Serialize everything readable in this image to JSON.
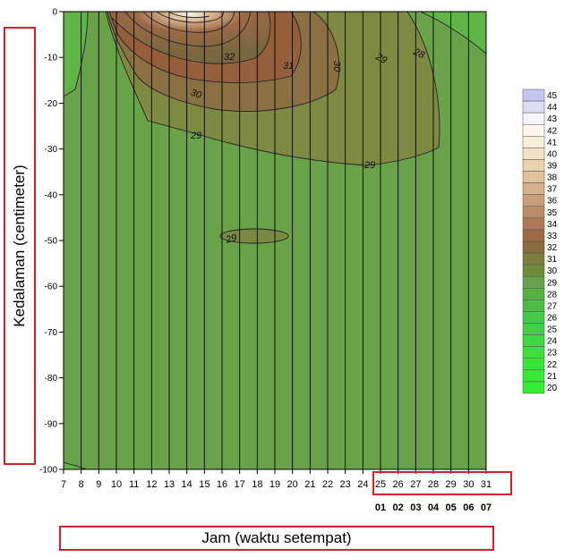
{
  "chart_data": {
    "type": "heatmap",
    "title": "",
    "xlabel": "Jam (waktu setempat)",
    "ylabel": "Kedalaman (centimeter)",
    "x_ticks": [
      "7",
      "8",
      "9",
      "10",
      "11",
      "12",
      "13",
      "14",
      "15",
      "16",
      "17",
      "18",
      "19",
      "20",
      "21",
      "22",
      "23",
      "24",
      "25",
      "26",
      "27",
      "28",
      "29",
      "30",
      "31"
    ],
    "x_ticks_next_day": [
      "01",
      "02",
      "03",
      "04",
      "05",
      "06",
      "07"
    ],
    "y_ticks": [
      "0",
      "-10",
      "-20",
      "-30",
      "-40",
      "-50",
      "-60",
      "-70",
      "-80",
      "-90",
      "-100"
    ],
    "xlim": [
      7,
      31
    ],
    "ylim": [
      -100,
      0
    ],
    "colorbar": {
      "levels": [
        20,
        21,
        22,
        23,
        24,
        25,
        26,
        27,
        28,
        29,
        30,
        31,
        32,
        33,
        34,
        35,
        36,
        37,
        38,
        39,
        40,
        41,
        42,
        43,
        44,
        45
      ],
      "labels": [
        "20",
        "21",
        "22",
        "23",
        "24",
        "25",
        "26",
        "27",
        "28",
        "29",
        "30",
        "31",
        "32",
        "33",
        "34",
        "35",
        "36",
        "37",
        "38",
        "39",
        "40",
        "41",
        "42",
        "43",
        "44",
        "45"
      ],
      "colors": [
        "#33ee33",
        "#36e936",
        "#39e439",
        "#3bdf3b",
        "#3ed93e",
        "#42d042",
        "#47c847",
        "#4fbd45",
        "#5aae47",
        "#66a24a",
        "#6f8b3c",
        "#7d7d3c",
        "#8a6d3a",
        "#9c6a45",
        "#ad7a55",
        "#bb8c66",
        "#c89f78",
        "#d5b08a",
        "#e0c29c",
        "#e9d3ae",
        "#f1e2c4",
        "#f6eed8",
        "#fbf6ec",
        "#f6f5fb",
        "#dcdcf5",
        "#c4c4ee"
      ]
    },
    "contour_labels": [
      "32",
      "31",
      "30",
      "29",
      "28",
      "30",
      "29",
      "29",
      "29"
    ],
    "grid": true,
    "legend": "right"
  }
}
